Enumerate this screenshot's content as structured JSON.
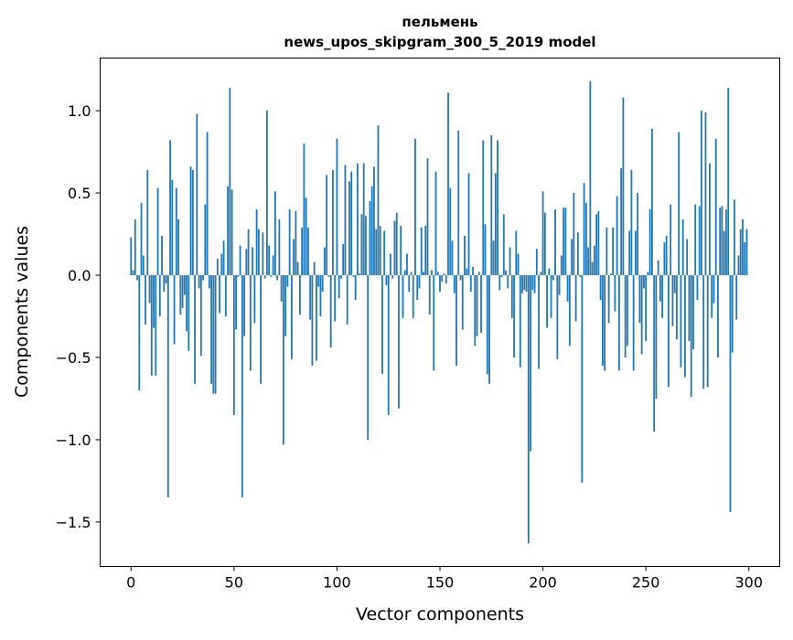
{
  "chart_data": {
    "type": "bar",
    "title": "пельмень",
    "subtitle": "news_upos_skipgram_300_5_2019 model",
    "xlabel": "Vector components",
    "ylabel": "Components values",
    "xlim": [
      -15,
      315
    ],
    "ylim": [
      -1.77,
      1.32
    ],
    "xticks": [
      0,
      50,
      100,
      150,
      200,
      250,
      300
    ],
    "yticks": [
      -1.5,
      -1.0,
      -0.5,
      0.0,
      0.5,
      1.0
    ],
    "ytick_labels": [
      "−1.5",
      "−1.0",
      "−0.5",
      "0.0",
      "0.5",
      "1.0"
    ],
    "xtick_labels": [
      "0",
      "50",
      "100",
      "150",
      "200",
      "250",
      "300"
    ],
    "grid": false,
    "color": "#1f77b4",
    "values": [
      0.23,
      0.03,
      0.34,
      -0.03,
      -0.7,
      0.44,
      0.12,
      -0.3,
      0.64,
      -0.17,
      -0.61,
      -0.32,
      -0.61,
      0.53,
      -0.25,
      0.24,
      -0.1,
      -0.05,
      -1.35,
      0.82,
      0.58,
      -0.42,
      0.53,
      0.34,
      -0.24,
      -0.2,
      -0.12,
      -0.34,
      -0.46,
      0.66,
      0.64,
      -0.66,
      0.98,
      -0.08,
      -0.49,
      -0.03,
      0.43,
      0.87,
      -0.08,
      -0.66,
      -0.72,
      -0.72,
      0.1,
      -0.23,
      0.13,
      0.21,
      -0.25,
      0.54,
      1.14,
      0.52,
      -0.85,
      -0.33,
      -0.01,
      0.18,
      -1.35,
      -0.37,
      0.16,
      0.28,
      -0.58,
      0.17,
      -0.29,
      0.4,
      0.28,
      -0.66,
      0.26,
      -0.02,
      1.0,
      0.18,
      -0.01,
      0.12,
      0.51,
      -0.03,
      0.34,
      -0.16,
      -1.03,
      -0.37,
      -0.07,
      0.4,
      -0.51,
      0.22,
      0.39,
      0.08,
      -0.24,
      0.29,
      0.8,
      0.47,
      0.29,
      -0.27,
      -0.55,
      0.08,
      -0.52,
      -0.07,
      -0.25,
      -0.1,
      0.17,
      0.61,
      -0.01,
      -0.44,
      0.64,
      -0.28,
      0.83,
      -0.14,
      -0.02,
      0.19,
      0.67,
      -0.3,
      0.57,
      0.63,
      -0.01,
      -0.15,
      0.68,
      0.01,
      0.37,
      0.68,
      0.36,
      -1.0,
      0.45,
      0.54,
      0.66,
      0.28,
      0.91,
      0.3,
      -0.6,
      0.27,
      -0.06,
      -0.85,
      0.13,
      -0.02,
      0.33,
      0.38,
      -0.81,
      0.3,
      -0.26,
      0.03,
      0.13,
      -0.1,
      0.02,
      -0.26,
      0.83,
      -0.15,
      -0.08,
      0.29,
      0.02,
      0.3,
      0.71,
      -0.24,
      0.03,
      -0.58,
      0.63,
      0.02,
      -0.1,
      -0.04,
      0.01,
      -0.05,
      1.11,
      0.53,
      0.21,
      -0.11,
      -0.55,
      0.88,
      -0.03,
      -0.33,
      0.24,
      0.04,
      0.62,
      -0.1,
      0.05,
      -0.43,
      -0.37,
      0.02,
      -0.35,
      0.82,
      0.31,
      -0.6,
      -0.66,
      0.85,
      0.21,
      0.62,
      0.82,
      -0.09,
      -0.01,
      0.37,
      0.03,
      -0.08,
      0.17,
      -0.26,
      -0.5,
      0.27,
      0.13,
      -0.56,
      -0.11,
      -0.09,
      -0.1,
      -1.63,
      -1.07,
      -0.09,
      -0.11,
      0.16,
      -0.57,
      0.02,
      0.51,
      0.38,
      -0.32,
      0.04,
      -0.26,
      -0.03,
      0.4,
      -0.51,
      -0.12,
      0.12,
      0.41,
      0.41,
      -0.16,
      -0.43,
      0.22,
      0.5,
      -0.28,
      0.26,
      -0.01,
      -1.26,
      0.56,
      0.44,
      0.17,
      1.18,
      0.08,
      0.18,
      0.37,
      0.39,
      -0.15,
      -0.55,
      -0.58,
      0.29,
      -0.29,
      0.01,
      0.29,
      -0.22,
      0.48,
      -0.58,
      0.65,
      1.08,
      -0.5,
      -0.43,
      0.27,
      0.64,
      -0.58,
      0.27,
      0.5,
      -0.29,
      -0.48,
      -0.08,
      -0.4,
      0.02,
      0.4,
      0.89,
      -0.95,
      -0.75,
      0.09,
      -0.16,
      -0.26,
      0.2,
      0.24,
      -0.68,
      0.43,
      -0.31,
      -0.11,
      -0.39,
      0.87,
      -0.56,
      0.34,
      -0.62,
      0.22,
      -0.4,
      -0.74,
      -0.45,
      0.43,
      -0.15,
      0.42,
      1.0,
      -0.69,
      0.99,
      -0.68,
      0.68,
      -0.26,
      -0.17,
      0.83,
      -0.5,
      0.41,
      0.42,
      0.27,
      0.4,
      1.14,
      -1.44,
      -0.47,
      0.46,
      -0.27,
      0.12,
      0.28,
      0.34,
      0.2,
      0.28
    ]
  }
}
